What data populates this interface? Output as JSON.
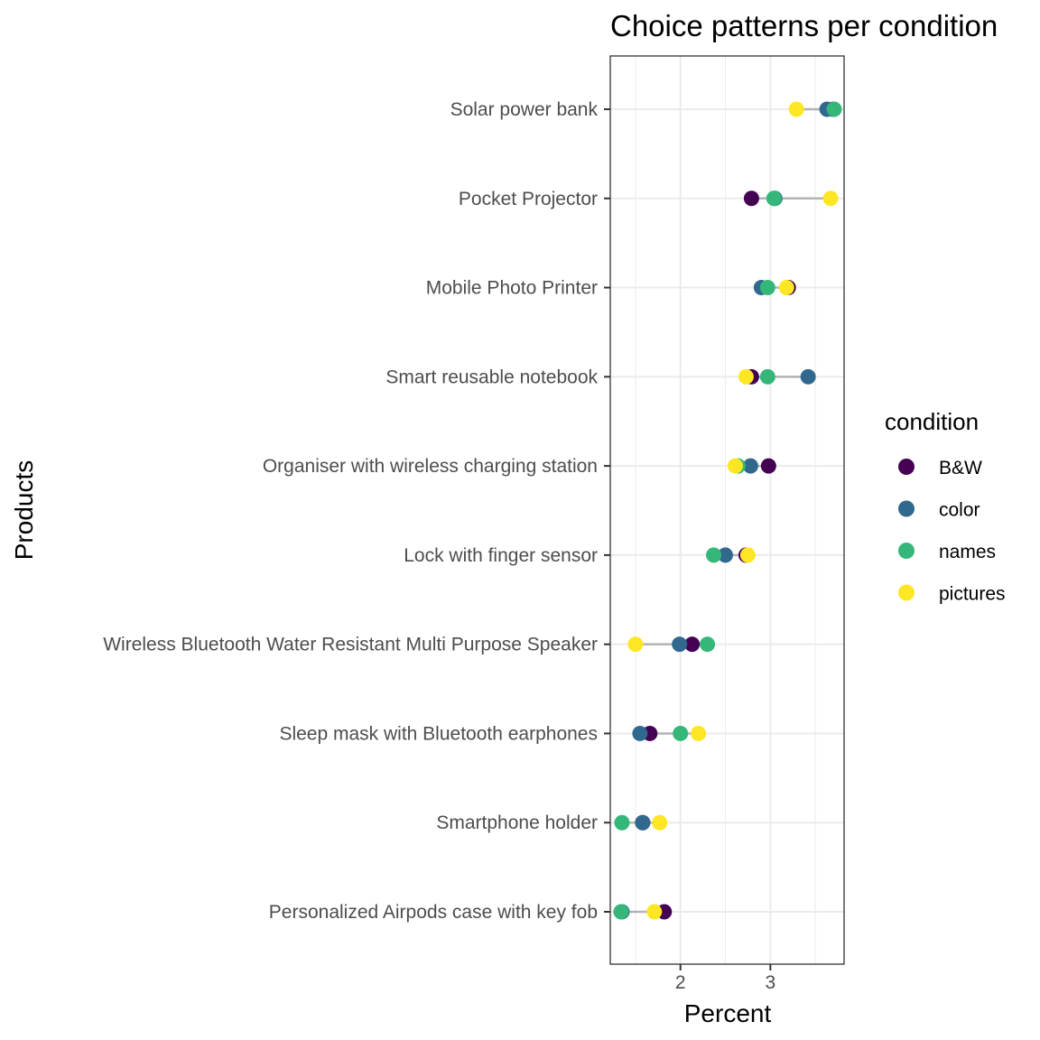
{
  "chart_data": {
    "type": "scatter",
    "title": "Choice patterns per condition",
    "xlabel": "Percent",
    "ylabel": "Products",
    "xlim": [
      1.22,
      3.82
    ],
    "x_ticks": [
      2,
      3
    ],
    "grid": true,
    "legend": {
      "title": "condition",
      "placement": "right"
    },
    "categories": [
      "Solar power bank",
      "Pocket Projector",
      "Mobile Photo Printer",
      "Smart reusable notebook",
      "Organiser with wireless charging station",
      "Lock with finger sensor",
      "Wireless Bluetooth Water Resistant Multi Purpose Speaker",
      "Sleep mask with Bluetooth earphones",
      "Smartphone holder",
      "Personalized Airpods case with key fob"
    ],
    "series": [
      {
        "name": "B&W",
        "color": "#440154",
        "values": [
          3.7,
          2.79,
          3.2,
          2.79,
          2.98,
          2.73,
          2.13,
          1.66,
          1.58,
          1.82
        ]
      },
      {
        "name": "color",
        "color": "#31688E",
        "values": [
          3.63,
          3.05,
          2.9,
          3.42,
          2.78,
          2.5,
          1.99,
          1.55,
          1.58,
          1.35
        ]
      },
      {
        "name": "names",
        "color": "#35B779",
        "values": [
          3.71,
          3.04,
          2.97,
          2.97,
          2.64,
          2.37,
          2.3,
          2.0,
          1.35,
          1.34
        ]
      },
      {
        "name": "pictures",
        "color": "#FDE725",
        "values": [
          3.29,
          3.67,
          3.18,
          2.73,
          2.61,
          2.75,
          1.5,
          2.2,
          1.77,
          1.71
        ]
      }
    ]
  }
}
